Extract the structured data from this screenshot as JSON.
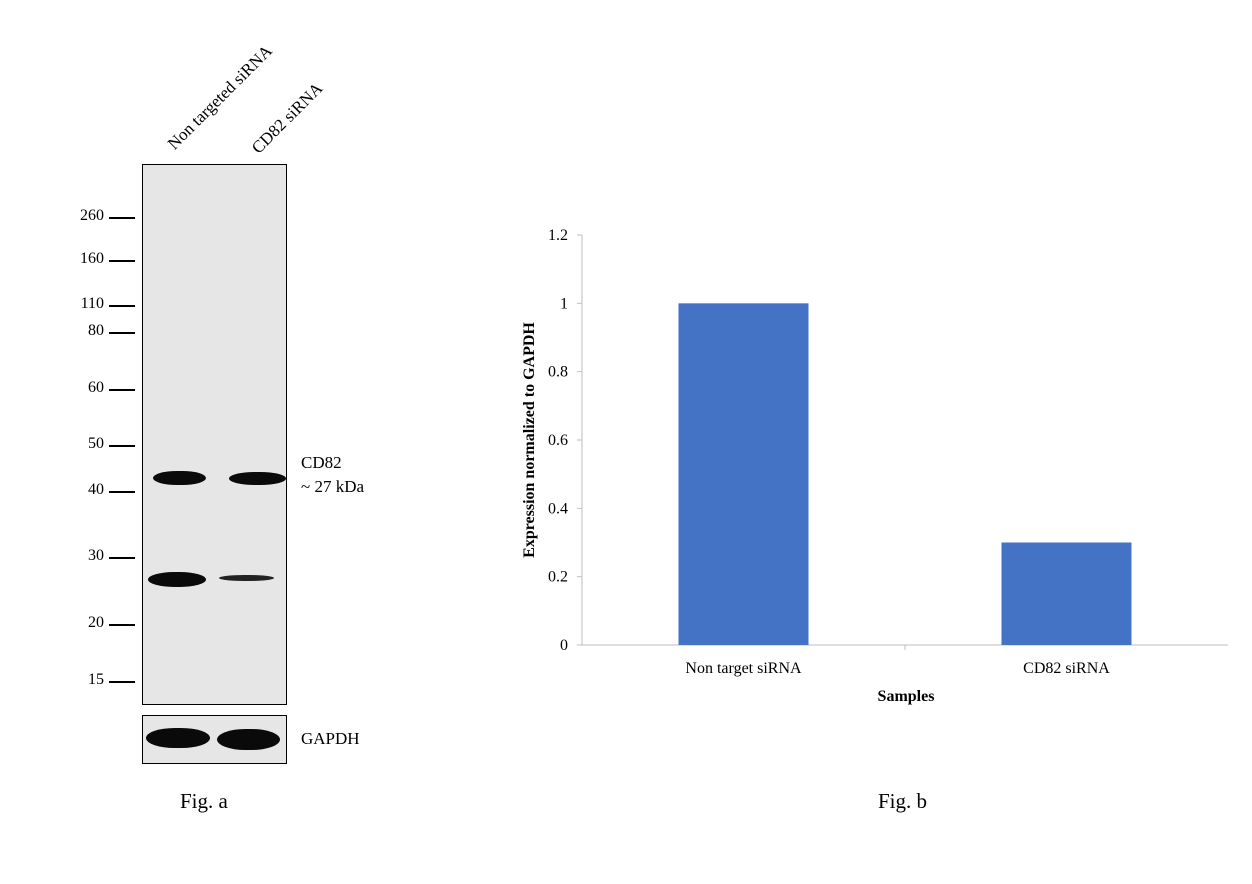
{
  "fig_a": {
    "lanes": [
      "Non targeted siRNA",
      "CD82 siRNA"
    ],
    "markers": [
      "260",
      "160",
      "110",
      "80",
      "60",
      "50",
      "40",
      "30",
      "20",
      "15"
    ],
    "target_label": "CD82",
    "target_size": "~ 27 kDa",
    "loading_control": "GAPDH",
    "caption": "Fig. a"
  },
  "fig_b": {
    "caption": "Fig. b"
  },
  "chart_data": {
    "type": "bar",
    "categories": [
      "Non target siRNA",
      "CD82 siRNA"
    ],
    "values": [
      1.0,
      0.3
    ],
    "xlabel": "Samples",
    "ylabel": "Expression normalized to GAPDH",
    "ylim": [
      0,
      1.2
    ],
    "yticks": [
      "0",
      "0.2",
      "0.4",
      "0.6",
      "0.8",
      "1",
      "1.2"
    ],
    "grid": false,
    "bar_color": "#4472c4"
  }
}
